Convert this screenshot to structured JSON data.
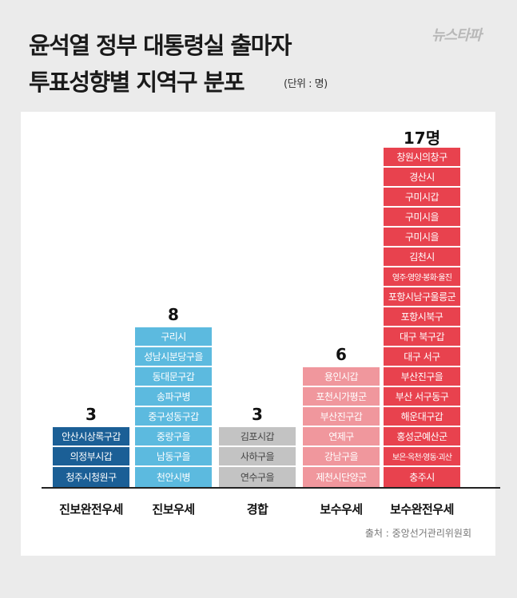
{
  "header": {
    "title_line1": "윤석열 정부 대통령실 출마자",
    "title_line2": "투표성향별 지역구 분포",
    "unit": "(단위 : 명)",
    "logo": "뉴스타파"
  },
  "source": "출처 : 중앙선거관리위원회",
  "colors": {
    "진보완전우세": "#1b5f96",
    "진보우세": "#5cbadf",
    "경합": "#c3c3c3",
    "보수우세": "#f0979d",
    "보수완전우세": "#e8424e"
  },
  "chart_data": {
    "type": "bar",
    "title": "윤석열 정부 대통령실 출마자 투표성향별 지역구 분포",
    "ylabel": "(단위 : 명)",
    "categories": [
      "진보완전우세",
      "진보우세",
      "경합",
      "보수우세",
      "보수완전우세"
    ],
    "values": [
      3,
      8,
      3,
      6,
      17
    ],
    "count_labels": [
      "3",
      "8",
      "3",
      "6",
      "17명"
    ],
    "districts": [
      [
        "안산시상록구갑",
        "의정부시갑",
        "청주시청원구"
      ],
      [
        "구리시",
        "성남시분당구을",
        "동대문구갑",
        "송파구병",
        "중구성동구갑",
        "중랑구을",
        "남동구을",
        "천안시병"
      ],
      [
        "김포시갑",
        "사하구을",
        "연수구을"
      ],
      [
        "용인시갑",
        "포천시가평군",
        "부산진구갑",
        "연제구",
        "강남구을",
        "제천시단양군"
      ],
      [
        "창원시의창구",
        "경산시",
        "구미시갑",
        "구미시을",
        "구미시을",
        "김천시",
        "영주·영양·봉화·울진",
        "포항시남구울릉군",
        "포항시북구",
        "대구 북구갑",
        "대구 서구",
        "부산진구을",
        "부산 서구동구",
        "해운대구갑",
        "홍성군예산군",
        "보은·옥천·영동·괴산",
        "충주시"
      ]
    ]
  }
}
